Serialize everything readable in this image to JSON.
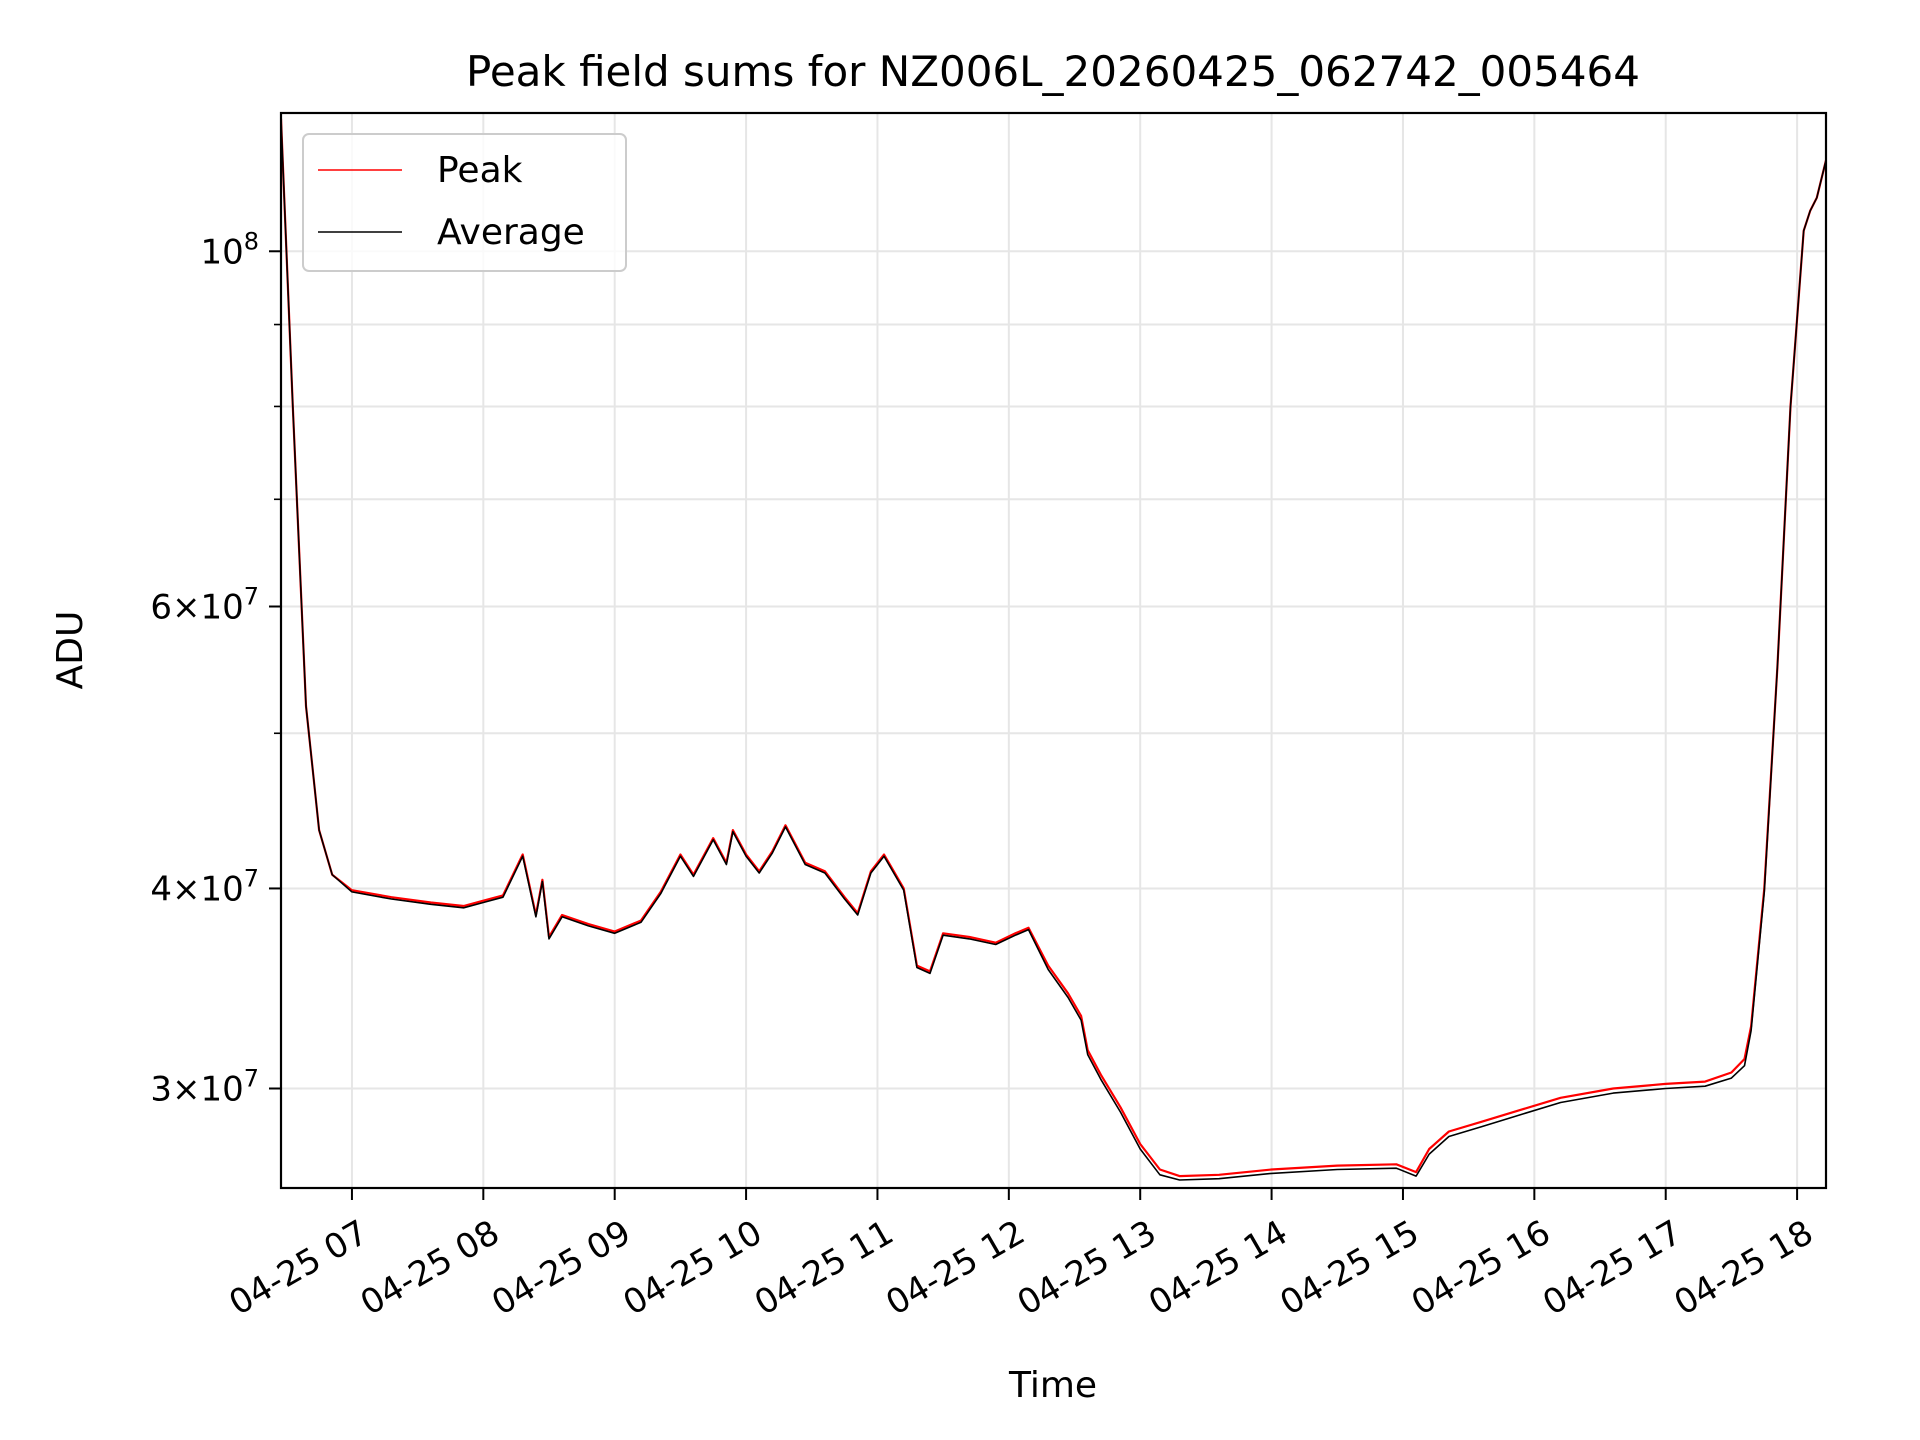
{
  "chart_data": {
    "type": "line",
    "title": "Peak field sums for NZ006L_20260425_062742_005464",
    "xlabel": "Time",
    "ylabel": "ADU",
    "x_ticks": [
      {
        "hour": 7,
        "label": "04-25 07"
      },
      {
        "hour": 8,
        "label": "04-25 08"
      },
      {
        "hour": 9,
        "label": "04-25 09"
      },
      {
        "hour": 10,
        "label": "04-25 10"
      },
      {
        "hour": 11,
        "label": "04-25 11"
      },
      {
        "hour": 12,
        "label": "04-25 12"
      },
      {
        "hour": 13,
        "label": "04-25 13"
      },
      {
        "hour": 14,
        "label": "04-25 14"
      },
      {
        "hour": 15,
        "label": "04-25 15"
      },
      {
        "hour": 16,
        "label": "04-25 16"
      },
      {
        "hour": 17,
        "label": "04-25 17"
      },
      {
        "hour": 18,
        "label": "04-25 18"
      }
    ],
    "y_scale": "log",
    "ylim": [
      26000000,
      122000000
    ],
    "xlim_hours": [
      6.46,
      18.22
    ],
    "y_ticks": [
      {
        "value": 30000000,
        "base": "3×10",
        "exp": "7"
      },
      {
        "value": 40000000,
        "base": "4×10",
        "exp": "7"
      },
      {
        "value": 60000000,
        "base": "6×10",
        "exp": "7"
      },
      {
        "value": 100000000,
        "base": "10",
        "exp": "8"
      }
    ],
    "y_minor_ticks": [
      50000000,
      70000000,
      80000000,
      90000000
    ],
    "grid": true,
    "legend_position": "upper-left",
    "series": [
      {
        "name": "Peak",
        "color": "#ff0000",
        "points": [
          [
            6.46,
            121000000
          ],
          [
            6.55,
            80000000
          ],
          [
            6.65,
            52000000
          ],
          [
            6.75,
            43500000
          ],
          [
            6.85,
            40800000
          ],
          [
            7.0,
            39900000
          ],
          [
            7.3,
            39500000
          ],
          [
            7.6,
            39200000
          ],
          [
            7.85,
            39000000
          ],
          [
            8.0,
            39300000
          ],
          [
            8.15,
            39600000
          ],
          [
            8.3,
            42000000
          ],
          [
            8.4,
            38500000
          ],
          [
            8.45,
            40500000
          ],
          [
            8.5,
            37300000
          ],
          [
            8.6,
            38500000
          ],
          [
            8.8,
            38000000
          ],
          [
            9.0,
            37600000
          ],
          [
            9.2,
            38200000
          ],
          [
            9.35,
            39800000
          ],
          [
            9.5,
            42000000
          ],
          [
            9.6,
            40800000
          ],
          [
            9.75,
            43000000
          ],
          [
            9.85,
            41500000
          ],
          [
            9.9,
            43500000
          ],
          [
            10.0,
            42000000
          ],
          [
            10.1,
            41000000
          ],
          [
            10.2,
            42200000
          ],
          [
            10.3,
            43800000
          ],
          [
            10.45,
            41500000
          ],
          [
            10.6,
            41000000
          ],
          [
            10.75,
            39500000
          ],
          [
            10.85,
            38600000
          ],
          [
            10.95,
            41000000
          ],
          [
            11.05,
            42000000
          ],
          [
            11.2,
            40000000
          ],
          [
            11.3,
            35800000
          ],
          [
            11.4,
            35500000
          ],
          [
            11.5,
            37500000
          ],
          [
            11.7,
            37300000
          ],
          [
            11.9,
            37000000
          ],
          [
            12.05,
            37500000
          ],
          [
            12.15,
            37800000
          ],
          [
            12.3,
            35800000
          ],
          [
            12.45,
            34400000
          ],
          [
            12.55,
            33300000
          ],
          [
            12.6,
            31700000
          ],
          [
            12.7,
            30600000
          ],
          [
            12.85,
            29200000
          ],
          [
            13.0,
            27700000
          ],
          [
            13.15,
            26700000
          ],
          [
            13.3,
            26450000
          ],
          [
            13.6,
            26500000
          ],
          [
            14.0,
            26700000
          ],
          [
            14.5,
            26850000
          ],
          [
            14.95,
            26900000
          ],
          [
            15.1,
            26600000
          ],
          [
            15.2,
            27500000
          ],
          [
            15.35,
            28200000
          ],
          [
            15.6,
            28600000
          ],
          [
            15.9,
            29100000
          ],
          [
            16.2,
            29600000
          ],
          [
            16.6,
            30000000
          ],
          [
            17.0,
            30200000
          ],
          [
            17.3,
            30300000
          ],
          [
            17.5,
            30700000
          ],
          [
            17.6,
            31300000
          ],
          [
            17.65,
            32800000
          ],
          [
            17.75,
            40000000
          ],
          [
            17.85,
            55000000
          ],
          [
            17.95,
            80000000
          ],
          [
            18.05,
            103000000
          ],
          [
            18.1,
            106000000
          ],
          [
            18.15,
            108000000
          ],
          [
            18.22,
            114000000
          ]
        ]
      },
      {
        "name": "Average",
        "color": "#000000",
        "points": [
          [
            6.46,
            121000000
          ],
          [
            6.55,
            80000000
          ],
          [
            6.65,
            52000000
          ],
          [
            6.75,
            43500000
          ],
          [
            6.85,
            40800000
          ],
          [
            7.0,
            39800000
          ],
          [
            7.3,
            39400000
          ],
          [
            7.6,
            39100000
          ],
          [
            7.85,
            38900000
          ],
          [
            8.0,
            39200000
          ],
          [
            8.15,
            39500000
          ],
          [
            8.3,
            41900000
          ],
          [
            8.4,
            38400000
          ],
          [
            8.45,
            40400000
          ],
          [
            8.5,
            37200000
          ],
          [
            8.6,
            38400000
          ],
          [
            8.8,
            37900000
          ],
          [
            9.0,
            37500000
          ],
          [
            9.2,
            38100000
          ],
          [
            9.35,
            39700000
          ],
          [
            9.5,
            41900000
          ],
          [
            9.6,
            40700000
          ],
          [
            9.75,
            42900000
          ],
          [
            9.85,
            41400000
          ],
          [
            9.9,
            43400000
          ],
          [
            10.0,
            41900000
          ],
          [
            10.1,
            40900000
          ],
          [
            10.2,
            42100000
          ],
          [
            10.3,
            43700000
          ],
          [
            10.45,
            41400000
          ],
          [
            10.6,
            40900000
          ],
          [
            10.75,
            39400000
          ],
          [
            10.85,
            38500000
          ],
          [
            10.95,
            40900000
          ],
          [
            11.05,
            41900000
          ],
          [
            11.2,
            39900000
          ],
          [
            11.3,
            35700000
          ],
          [
            11.4,
            35400000
          ],
          [
            11.5,
            37400000
          ],
          [
            11.7,
            37200000
          ],
          [
            11.9,
            36900000
          ],
          [
            12.05,
            37400000
          ],
          [
            12.15,
            37700000
          ],
          [
            12.3,
            35600000
          ],
          [
            12.45,
            34200000
          ],
          [
            12.55,
            33100000
          ],
          [
            12.6,
            31500000
          ],
          [
            12.7,
            30400000
          ],
          [
            12.85,
            29000000
          ],
          [
            13.0,
            27500000
          ],
          [
            13.15,
            26500000
          ],
          [
            13.3,
            26300000
          ],
          [
            13.6,
            26350000
          ],
          [
            14.0,
            26550000
          ],
          [
            14.5,
            26700000
          ],
          [
            14.95,
            26750000
          ],
          [
            15.1,
            26450000
          ],
          [
            15.2,
            27300000
          ],
          [
            15.35,
            28000000
          ],
          [
            15.6,
            28400000
          ],
          [
            15.9,
            28900000
          ],
          [
            16.2,
            29400000
          ],
          [
            16.6,
            29800000
          ],
          [
            17.0,
            30000000
          ],
          [
            17.3,
            30100000
          ],
          [
            17.5,
            30450000
          ],
          [
            17.6,
            31000000
          ],
          [
            17.65,
            32600000
          ],
          [
            17.75,
            39800000
          ],
          [
            17.85,
            55000000
          ],
          [
            17.95,
            80000000
          ],
          [
            18.05,
            103000000
          ],
          [
            18.1,
            106000000
          ],
          [
            18.15,
            108000000
          ],
          [
            18.22,
            114000000
          ]
        ]
      }
    ]
  }
}
